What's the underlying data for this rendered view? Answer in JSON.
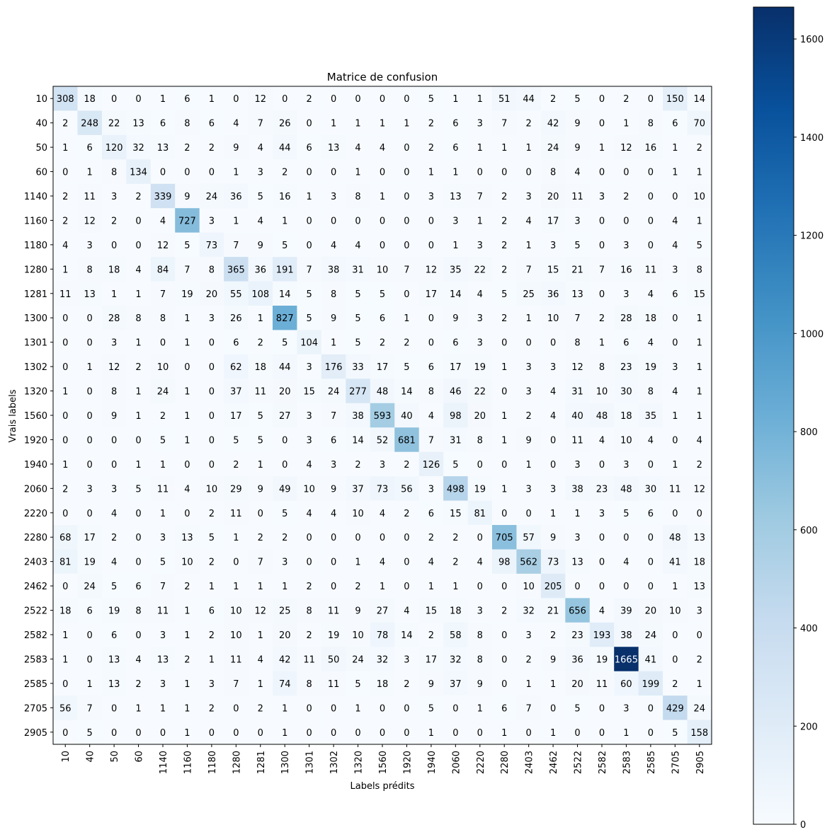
{
  "chart_data": {
    "type": "heatmap",
    "title": "Matrice de confusion",
    "xlabel": "Labels prédits",
    "ylabel": "Vrais labels",
    "labels": [
      "10",
      "40",
      "50",
      "60",
      "1140",
      "1160",
      "1180",
      "1280",
      "1281",
      "1300",
      "1301",
      "1302",
      "1320",
      "1560",
      "1920",
      "1940",
      "2060",
      "2220",
      "2280",
      "2403",
      "2462",
      "2522",
      "2582",
      "2583",
      "2585",
      "2705",
      "2905"
    ],
    "matrix": [
      [
        308,
        18,
        0,
        0,
        1,
        6,
        1,
        0,
        12,
        0,
        2,
        0,
        0,
        0,
        0,
        5,
        1,
        1,
        51,
        44,
        2,
        5,
        0,
        2,
        0,
        150,
        14
      ],
      [
        2,
        248,
        22,
        13,
        6,
        8,
        6,
        4,
        7,
        26,
        0,
        1,
        1,
        1,
        1,
        2,
        6,
        3,
        7,
        2,
        42,
        9,
        0,
        1,
        8,
        6,
        70
      ],
      [
        1,
        6,
        120,
        32,
        13,
        2,
        2,
        9,
        4,
        44,
        6,
        13,
        4,
        4,
        0,
        2,
        6,
        1,
        1,
        1,
        24,
        9,
        1,
        12,
        16,
        1,
        2
      ],
      [
        0,
        1,
        8,
        134,
        0,
        0,
        0,
        1,
        3,
        2,
        0,
        0,
        1,
        0,
        0,
        1,
        1,
        0,
        0,
        0,
        8,
        4,
        0,
        0,
        0,
        1,
        1
      ],
      [
        2,
        11,
        3,
        2,
        339,
        9,
        24,
        36,
        5,
        16,
        1,
        3,
        8,
        1,
        0,
        3,
        13,
        7,
        2,
        3,
        20,
        11,
        3,
        2,
        0,
        0,
        10
      ],
      [
        2,
        12,
        2,
        0,
        4,
        727,
        3,
        1,
        4,
        1,
        0,
        0,
        0,
        0,
        0,
        0,
        3,
        1,
        2,
        4,
        17,
        3,
        0,
        0,
        0,
        4,
        1
      ],
      [
        4,
        3,
        0,
        0,
        12,
        5,
        73,
        7,
        9,
        5,
        0,
        4,
        4,
        0,
        0,
        0,
        1,
        3,
        2,
        1,
        3,
        5,
        0,
        3,
        0,
        4,
        5
      ],
      [
        1,
        8,
        18,
        4,
        84,
        7,
        8,
        365,
        36,
        191,
        7,
        38,
        31,
        10,
        7,
        12,
        35,
        22,
        2,
        7,
        15,
        21,
        7,
        16,
        11,
        3,
        8
      ],
      [
        11,
        13,
        1,
        1,
        7,
        19,
        20,
        55,
        108,
        14,
        5,
        8,
        5,
        5,
        0,
        17,
        14,
        4,
        5,
        25,
        36,
        13,
        0,
        3,
        4,
        6,
        15
      ],
      [
        0,
        0,
        28,
        8,
        8,
        1,
        3,
        26,
        1,
        827,
        5,
        9,
        5,
        6,
        1,
        0,
        9,
        3,
        2,
        1,
        10,
        7,
        2,
        28,
        18,
        0,
        1
      ],
      [
        0,
        0,
        3,
        1,
        0,
        1,
        0,
        6,
        2,
        5,
        104,
        1,
        5,
        2,
        2,
        0,
        6,
        3,
        0,
        0,
        0,
        8,
        1,
        6,
        4,
        0,
        1
      ],
      [
        0,
        1,
        12,
        2,
        10,
        0,
        0,
        62,
        18,
        44,
        3,
        176,
        33,
        17,
        5,
        6,
        17,
        19,
        1,
        3,
        3,
        12,
        8,
        23,
        19,
        3,
        1
      ],
      [
        1,
        0,
        8,
        1,
        24,
        1,
        0,
        37,
        11,
        20,
        15,
        24,
        277,
        48,
        14,
        8,
        46,
        22,
        0,
        3,
        4,
        31,
        10,
        30,
        8,
        4,
        1
      ],
      [
        0,
        0,
        9,
        1,
        2,
        1,
        0,
        17,
        5,
        27,
        3,
        7,
        38,
        593,
        40,
        4,
        98,
        20,
        1,
        2,
        4,
        40,
        48,
        18,
        35,
        1,
        1
      ],
      [
        0,
        0,
        0,
        0,
        5,
        1,
        0,
        5,
        5,
        0,
        3,
        6,
        14,
        52,
        681,
        7,
        31,
        8,
        1,
        9,
        0,
        11,
        4,
        10,
        4,
        0,
        4
      ],
      [
        1,
        0,
        0,
        1,
        1,
        0,
        0,
        2,
        1,
        0,
        4,
        3,
        2,
        3,
        2,
        126,
        5,
        0,
        0,
        1,
        0,
        3,
        0,
        3,
        0,
        1,
        2
      ],
      [
        2,
        3,
        3,
        5,
        11,
        4,
        10,
        29,
        9,
        49,
        10,
        9,
        37,
        73,
        56,
        3,
        498,
        19,
        1,
        3,
        3,
        38,
        23,
        48,
        30,
        11,
        12
      ],
      [
        0,
        0,
        4,
        0,
        1,
        0,
        2,
        11,
        0,
        5,
        4,
        4,
        10,
        4,
        2,
        6,
        15,
        81,
        0,
        0,
        1,
        1,
        3,
        5,
        6,
        0,
        0
      ],
      [
        68,
        17,
        2,
        0,
        3,
        13,
        5,
        1,
        2,
        2,
        0,
        0,
        0,
        0,
        0,
        2,
        2,
        0,
        705,
        57,
        9,
        3,
        0,
        0,
        0,
        48,
        13
      ],
      [
        81,
        19,
        4,
        0,
        5,
        10,
        2,
        0,
        7,
        3,
        0,
        0,
        1,
        4,
        0,
        4,
        2,
        4,
        98,
        562,
        73,
        13,
        0,
        4,
        0,
        41,
        18
      ],
      [
        0,
        24,
        5,
        6,
        7,
        2,
        1,
        1,
        1,
        1,
        2,
        0,
        2,
        1,
        0,
        1,
        1,
        0,
        0,
        10,
        205,
        0,
        0,
        0,
        0,
        1,
        13
      ],
      [
        18,
        6,
        19,
        8,
        11,
        1,
        6,
        10,
        12,
        25,
        8,
        11,
        9,
        27,
        4,
        15,
        18,
        3,
        2,
        32,
        21,
        656,
        4,
        39,
        20,
        10,
        3
      ],
      [
        1,
        0,
        6,
        0,
        3,
        1,
        2,
        10,
        1,
        20,
        2,
        19,
        10,
        78,
        14,
        2,
        58,
        8,
        0,
        3,
        2,
        23,
        193,
        38,
        24,
        0,
        0
      ],
      [
        1,
        0,
        13,
        4,
        13,
        2,
        1,
        11,
        4,
        42,
        11,
        50,
        24,
        32,
        3,
        17,
        32,
        8,
        0,
        2,
        9,
        36,
        19,
        1665,
        41,
        0,
        2
      ],
      [
        0,
        1,
        13,
        2,
        3,
        1,
        3,
        7,
        1,
        74,
        8,
        11,
        5,
        18,
        2,
        9,
        37,
        9,
        0,
        1,
        1,
        20,
        11,
        60,
        199,
        2,
        1
      ],
      [
        56,
        7,
        0,
        1,
        1,
        1,
        2,
        0,
        2,
        1,
        0,
        0,
        1,
        0,
        0,
        5,
        0,
        1,
        6,
        7,
        0,
        5,
        0,
        3,
        0,
        429,
        24
      ],
      [
        0,
        5,
        0,
        0,
        0,
        1,
        0,
        0,
        0,
        1,
        0,
        0,
        0,
        0,
        0,
        1,
        0,
        0,
        1,
        0,
        1,
        0,
        0,
        1,
        0,
        5,
        158
      ]
    ],
    "vmin": 0,
    "vmax": 1665,
    "colormap": "Blues",
    "text_color_dark": "#000000",
    "text_color_light": "#ffffff",
    "colorbar_ticks": [
      0,
      200,
      400,
      600,
      800,
      1000,
      1200,
      1400,
      1600
    ]
  }
}
